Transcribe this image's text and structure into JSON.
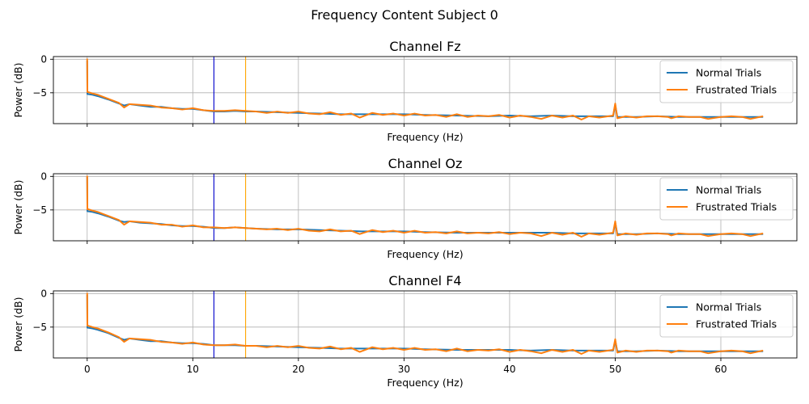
{
  "figure": {
    "suptitle": "Frequency Content Subject 0"
  },
  "colors": {
    "normal": "#1f77b4",
    "frustrated": "#ff7f0e",
    "vline_blue": "#0000cd",
    "vline_orange": "#ffa500",
    "grid": "#b0b0b0"
  },
  "chart_data": [
    {
      "type": "line",
      "title": "Channel Fz",
      "xlabel": "Frequency (Hz)",
      "ylabel": "Power (dB)",
      "xlim": [
        -3.2,
        67.2
      ],
      "ylim": [
        -9.6,
        0.4
      ],
      "xticks": [
        0,
        10,
        20,
        30,
        40,
        50,
        60
      ],
      "yticks": [
        0,
        -5
      ],
      "show_xtick_labels": false,
      "grid": true,
      "legend": "upper-right",
      "vlines": [
        12,
        15
      ],
      "series": [
        {
          "name": "Normal Trials",
          "color": "#1f77b4",
          "x": [
            0,
            0.02,
            0.1,
            0.5,
            1,
            2,
            3,
            3.5,
            4,
            5,
            6,
            7,
            8,
            9,
            10,
            11,
            12,
            13,
            14,
            15,
            16,
            18,
            20,
            22,
            24,
            26,
            28,
            30,
            32,
            35,
            38,
            40,
            42,
            44,
            46,
            48,
            49.8,
            50,
            50.2,
            52,
            54,
            56,
            58,
            60,
            62,
            64
          ],
          "y": [
            -0.2,
            -5.2,
            -5.2,
            -5.3,
            -5.5,
            -6.0,
            -6.6,
            -6.9,
            -6.7,
            -6.9,
            -7.1,
            -7.1,
            -7.3,
            -7.4,
            -7.4,
            -7.6,
            -7.8,
            -7.8,
            -7.7,
            -7.8,
            -7.8,
            -7.9,
            -8.0,
            -8.1,
            -8.2,
            -8.2,
            -8.2,
            -8.2,
            -8.3,
            -8.4,
            -8.5,
            -8.4,
            -8.5,
            -8.4,
            -8.5,
            -8.5,
            -8.5,
            -6.8,
            -8.6,
            -8.6,
            -8.5,
            -8.6,
            -8.6,
            -8.6,
            -8.6,
            -8.6
          ]
        },
        {
          "name": "Frustrated Trials",
          "color": "#ff7f0e",
          "x": [
            0,
            0.02,
            0.1,
            0.5,
            1,
            2,
            3,
            3.5,
            4,
            5,
            6,
            7,
            8,
            9,
            10,
            11,
            12,
            13,
            14,
            15,
            16,
            17,
            18,
            19,
            20,
            21,
            22,
            23,
            24,
            25,
            25.8,
            27,
            28,
            29,
            30,
            31,
            32,
            33,
            34,
            35,
            36,
            37,
            38,
            39,
            40,
            41,
            42,
            43,
            44,
            45,
            46,
            46.8,
            47.5,
            48.5,
            49.8,
            50,
            50.2,
            51,
            52,
            53,
            54,
            55,
            55.3,
            56,
            57,
            58,
            58.8,
            60,
            61,
            62,
            62.8,
            64
          ],
          "y": [
            0.1,
            -4.9,
            -4.9,
            -5.1,
            -5.3,
            -5.9,
            -6.5,
            -7.2,
            -6.7,
            -6.8,
            -6.9,
            -7.2,
            -7.3,
            -7.5,
            -7.3,
            -7.6,
            -7.7,
            -7.7,
            -7.6,
            -7.7,
            -7.8,
            -8.0,
            -7.8,
            -8.0,
            -7.8,
            -8.1,
            -8.2,
            -7.9,
            -8.3,
            -8.1,
            -8.7,
            -8.0,
            -8.3,
            -8.1,
            -8.4,
            -8.1,
            -8.4,
            -8.3,
            -8.6,
            -8.2,
            -8.6,
            -8.4,
            -8.5,
            -8.3,
            -8.7,
            -8.4,
            -8.6,
            -8.9,
            -8.4,
            -8.7,
            -8.4,
            -9.0,
            -8.5,
            -8.7,
            -8.4,
            -6.6,
            -8.8,
            -8.5,
            -8.7,
            -8.5,
            -8.5,
            -8.6,
            -8.8,
            -8.5,
            -8.6,
            -8.6,
            -8.9,
            -8.6,
            -8.5,
            -8.6,
            -8.9,
            -8.5
          ]
        }
      ]
    },
    {
      "type": "line",
      "title": "Channel Oz",
      "xlabel": "Frequency (Hz)",
      "ylabel": "Power (dB)",
      "xlim": [
        -3.2,
        67.2
      ],
      "ylim": [
        -9.6,
        0.4
      ],
      "xticks": [
        0,
        10,
        20,
        30,
        40,
        50,
        60
      ],
      "yticks": [
        0,
        -5
      ],
      "show_xtick_labels": false,
      "grid": true,
      "legend": "upper-right",
      "vlines": [
        12,
        15
      ],
      "series": [
        {
          "name": "Normal Trials",
          "color": "#1f77b4",
          "x": [
            0,
            0.02,
            0.1,
            0.5,
            1,
            2,
            3,
            3.5,
            4,
            5,
            6,
            7,
            8,
            9,
            10,
            11,
            12,
            13,
            14,
            15,
            16,
            18,
            20,
            22,
            24,
            26,
            28,
            30,
            32,
            35,
            38,
            40,
            42,
            44,
            46,
            48,
            49.8,
            50,
            50.2,
            52,
            54,
            56,
            58,
            60,
            62,
            64
          ],
          "y": [
            -0.1,
            -5.2,
            -5.2,
            -5.3,
            -5.5,
            -6.0,
            -6.6,
            -6.8,
            -6.7,
            -6.9,
            -7.0,
            -7.1,
            -7.3,
            -7.4,
            -7.4,
            -7.5,
            -7.7,
            -7.7,
            -7.6,
            -7.7,
            -7.8,
            -7.9,
            -7.9,
            -8.0,
            -8.1,
            -8.2,
            -8.2,
            -8.2,
            -8.3,
            -8.4,
            -8.4,
            -8.4,
            -8.4,
            -8.4,
            -8.5,
            -8.5,
            -8.5,
            -6.9,
            -8.6,
            -8.6,
            -8.5,
            -8.6,
            -8.6,
            -8.6,
            -8.6,
            -8.6
          ]
        },
        {
          "name": "Frustrated Trials",
          "color": "#ff7f0e",
          "x": [
            0,
            0.02,
            0.1,
            0.5,
            1,
            2,
            3,
            3.5,
            4,
            5,
            6,
            7,
            8,
            9,
            10,
            11,
            12,
            13,
            14,
            15,
            16,
            17,
            18,
            19,
            20,
            21,
            22,
            23,
            24,
            25,
            25.8,
            27,
            28,
            29,
            30,
            31,
            32,
            33,
            34,
            35,
            36,
            37,
            38,
            39,
            40,
            41,
            42,
            43,
            44,
            45,
            46,
            46.8,
            47.5,
            48.5,
            49.8,
            50,
            50.2,
            51,
            52,
            53,
            54,
            55,
            55.3,
            56,
            57,
            58,
            58.8,
            60,
            61,
            62,
            62.8,
            64
          ],
          "y": [
            0.1,
            -4.9,
            -4.9,
            -5.1,
            -5.3,
            -5.9,
            -6.5,
            -7.2,
            -6.7,
            -6.8,
            -6.9,
            -7.2,
            -7.2,
            -7.5,
            -7.3,
            -7.6,
            -7.6,
            -7.7,
            -7.6,
            -7.7,
            -7.8,
            -7.9,
            -7.8,
            -8.0,
            -7.8,
            -8.1,
            -8.2,
            -7.9,
            -8.2,
            -8.1,
            -8.6,
            -8.0,
            -8.3,
            -8.1,
            -8.4,
            -8.1,
            -8.4,
            -8.3,
            -8.5,
            -8.2,
            -8.5,
            -8.4,
            -8.5,
            -8.3,
            -8.6,
            -8.4,
            -8.5,
            -8.9,
            -8.4,
            -8.7,
            -8.4,
            -9.0,
            -8.5,
            -8.7,
            -8.4,
            -6.7,
            -8.8,
            -8.5,
            -8.7,
            -8.5,
            -8.5,
            -8.6,
            -8.8,
            -8.5,
            -8.6,
            -8.6,
            -8.9,
            -8.6,
            -8.5,
            -8.6,
            -8.9,
            -8.5
          ]
        }
      ]
    },
    {
      "type": "line",
      "title": "Channel F4",
      "xlabel": "Frequency (Hz)",
      "ylabel": "Power (dB)",
      "xlim": [
        -3.2,
        67.2
      ],
      "ylim": [
        -9.6,
        0.4
      ],
      "xticks": [
        0,
        10,
        20,
        30,
        40,
        50,
        60
      ],
      "yticks": [
        0,
        -5
      ],
      "show_xtick_labels": true,
      "grid": true,
      "legend": "upper-right",
      "vlines": [
        12,
        15
      ],
      "series": [
        {
          "name": "Normal Trials",
          "color": "#1f77b4",
          "x": [
            0,
            0.02,
            0.1,
            0.5,
            1,
            2,
            3,
            3.5,
            4,
            5,
            6,
            7,
            8,
            9,
            10,
            11,
            12,
            13,
            14,
            15,
            16,
            18,
            20,
            22,
            24,
            26,
            28,
            30,
            32,
            35,
            38,
            40,
            42,
            44,
            46,
            48,
            49.8,
            50,
            50.2,
            52,
            54,
            56,
            58,
            60,
            62,
            64
          ],
          "y": [
            -0.2,
            -5.1,
            -5.1,
            -5.2,
            -5.4,
            -5.9,
            -6.6,
            -6.9,
            -6.7,
            -6.9,
            -7.1,
            -7.1,
            -7.3,
            -7.4,
            -7.4,
            -7.5,
            -7.7,
            -7.7,
            -7.7,
            -7.8,
            -7.8,
            -7.9,
            -8.0,
            -8.1,
            -8.2,
            -8.2,
            -8.2,
            -8.2,
            -8.3,
            -8.4,
            -8.4,
            -8.4,
            -8.5,
            -8.4,
            -8.5,
            -8.5,
            -8.5,
            -7.0,
            -8.6,
            -8.6,
            -8.5,
            -8.6,
            -8.6,
            -8.6,
            -8.6,
            -8.6
          ]
        },
        {
          "name": "Frustrated Trials",
          "color": "#ff7f0e",
          "x": [
            0,
            0.02,
            0.1,
            0.5,
            1,
            2,
            3,
            3.5,
            4,
            5,
            6,
            7,
            8,
            9,
            10,
            11,
            12,
            13,
            14,
            15,
            16,
            17,
            18,
            19,
            20,
            21,
            22,
            23,
            24,
            25,
            25.8,
            27,
            28,
            29,
            30,
            31,
            32,
            33,
            34,
            35,
            36,
            37,
            38,
            39,
            40,
            41,
            42,
            43,
            44,
            45,
            46,
            46.8,
            47.5,
            48.5,
            49.8,
            50,
            50.2,
            51,
            52,
            53,
            54,
            55,
            55.3,
            56,
            57,
            58,
            58.8,
            60,
            61,
            62,
            62.8,
            64
          ],
          "y": [
            0.1,
            -4.8,
            -4.8,
            -5.0,
            -5.2,
            -5.8,
            -6.5,
            -7.2,
            -6.7,
            -6.8,
            -6.9,
            -7.2,
            -7.3,
            -7.5,
            -7.3,
            -7.6,
            -7.7,
            -7.7,
            -7.6,
            -7.8,
            -7.8,
            -8.0,
            -7.8,
            -8.0,
            -7.8,
            -8.1,
            -8.2,
            -7.9,
            -8.3,
            -8.1,
            -8.7,
            -8.0,
            -8.3,
            -8.1,
            -8.4,
            -8.1,
            -8.4,
            -8.3,
            -8.6,
            -8.2,
            -8.6,
            -8.4,
            -8.5,
            -8.3,
            -8.7,
            -8.4,
            -8.6,
            -8.9,
            -8.4,
            -8.7,
            -8.4,
            -9.0,
            -8.5,
            -8.7,
            -8.4,
            -6.8,
            -8.8,
            -8.5,
            -8.7,
            -8.5,
            -8.5,
            -8.6,
            -8.8,
            -8.5,
            -8.6,
            -8.6,
            -8.9,
            -8.6,
            -8.5,
            -8.6,
            -8.9,
            -8.5
          ]
        }
      ]
    }
  ]
}
